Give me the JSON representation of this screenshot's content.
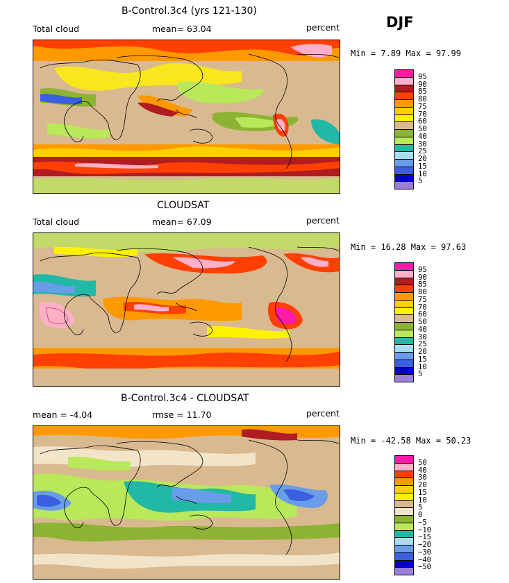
{
  "season": "DJF",
  "panels": [
    {
      "id": "model",
      "title": "B-Control.3c4 (yrs 121-130)",
      "left_label": "Total cloud",
      "center_label": "mean=  63.04",
      "units": "percent",
      "minmax": "Min =    7.89 Max =   97.99",
      "levels": [
        "95",
        "90",
        "85",
        "80",
        "75",
        "70",
        "60",
        "50",
        "40",
        "30",
        "25",
        "20",
        "15",
        "10",
        "5"
      ],
      "colors": [
        "#ff1aa8",
        "#ffb0c8",
        "#b01c22",
        "#ff4000",
        "#ff9900",
        "#ffd000",
        "#fff200",
        "#d9b98f",
        "#8db335",
        "#b9e85a",
        "#22b8a6",
        "#a8ddf0",
        "#6a9de8",
        "#3a5fe0",
        "#0000c8",
        "#9a7fd6"
      ]
    },
    {
      "id": "obs",
      "title": "CLOUDSAT",
      "left_label": "Total cloud",
      "center_label": "mean=  67.09",
      "units": "percent",
      "minmax": "Min =   16.28 Max =   97.63",
      "levels": [
        "95",
        "90",
        "85",
        "80",
        "75",
        "70",
        "60",
        "50",
        "40",
        "30",
        "25",
        "20",
        "15",
        "10",
        "5"
      ],
      "colors": [
        "#ff1aa8",
        "#ffb0c8",
        "#b01c22",
        "#ff4000",
        "#ff9900",
        "#ffd000",
        "#fff200",
        "#d9b98f",
        "#8db335",
        "#b9e85a",
        "#22b8a6",
        "#a8ddf0",
        "#6a9de8",
        "#3a5fe0",
        "#0000c8",
        "#9a7fd6"
      ]
    },
    {
      "id": "diff",
      "title": "B-Control.3c4 - CLOUDSAT",
      "left_label": "mean =   -4.04",
      "center_label": "rmse =   11.70",
      "units": "percent",
      "minmax": "Min = -42.58 Max =   50.23",
      "levels": [
        "50",
        "40",
        "30",
        "20",
        "15",
        "10",
        "5",
        "0",
        "−5",
        "−10",
        "−15",
        "−20",
        "−30",
        "−40",
        "−50"
      ],
      "colors": [
        "#ff1aa8",
        "#ffb0c8",
        "#ff4000",
        "#ff9900",
        "#ffd000",
        "#fff200",
        "#d9b98f",
        "#f2e4c8",
        "#8db335",
        "#b9e85a",
        "#22b8a6",
        "#a8ddf0",
        "#6a9de8",
        "#3a5fe0",
        "#0000c8",
        "#9a7fd6"
      ]
    }
  ]
}
